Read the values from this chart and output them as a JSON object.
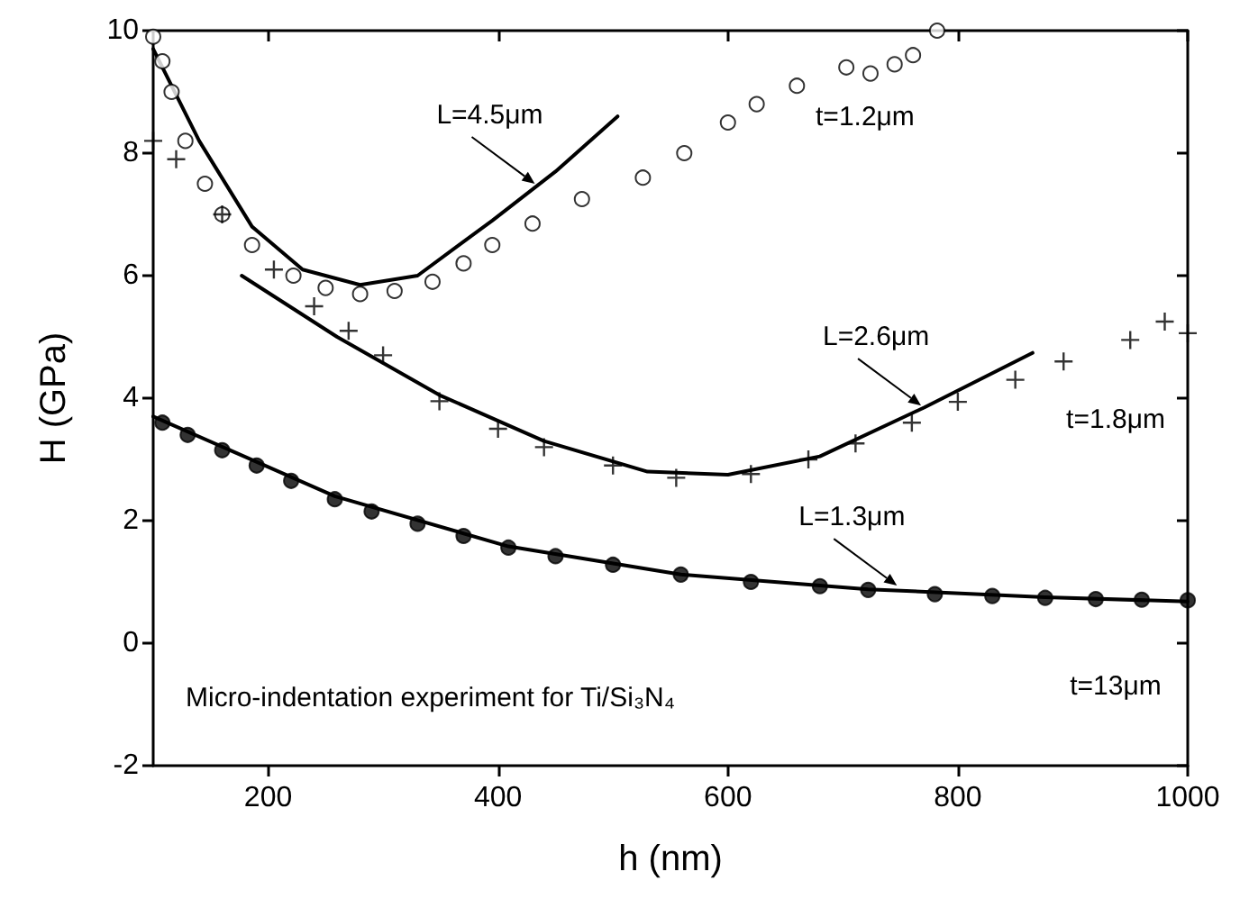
{
  "chart_data": {
    "type": "scatter",
    "xlabel": "h (nm)",
    "ylabel": "H (GPa)",
    "xlim": [
      100,
      1000
    ],
    "ylim": [
      -2,
      10
    ],
    "xticks": [
      200,
      400,
      600,
      800,
      1000
    ],
    "yticks": [
      -2,
      0,
      2,
      4,
      6,
      8,
      10
    ],
    "grid": false,
    "legend": "right",
    "series": [
      {
        "name": "t=1.2μm",
        "marker": "circle",
        "color": "#ffffff",
        "x": [
          100,
          108,
          116,
          128,
          145,
          160,
          186,
          222,
          250,
          280,
          310,
          343,
          370,
          395,
          430,
          473,
          526,
          562,
          600,
          625,
          660,
          703,
          724,
          745,
          761,
          782
        ],
        "values": [
          9.9,
          9.5,
          9.0,
          8.2,
          7.5,
          7.0,
          6.5,
          6.0,
          5.8,
          5.7,
          5.75,
          5.9,
          6.2,
          6.5,
          6.85,
          7.25,
          7.6,
          8.0,
          8.5,
          8.8,
          9.1,
          9.4,
          9.3,
          9.45,
          9.6,
          10.0
        ]
      },
      {
        "name": "t=1.8μm",
        "marker": "cross",
        "color": "#000000",
        "x": [
          100,
          120,
          160,
          205,
          240,
          270,
          300,
          349,
          400,
          440,
          500,
          555,
          620,
          670,
          711,
          760,
          800,
          850,
          892,
          950,
          980,
          1000
        ],
        "values": [
          8.2,
          7.9,
          7.0,
          6.1,
          5.5,
          5.1,
          4.7,
          3.95,
          3.5,
          3.2,
          2.9,
          2.7,
          2.76,
          3.0,
          3.26,
          3.6,
          3.94,
          4.3,
          4.6,
          4.95,
          5.25,
          5.06
        ]
      },
      {
        "name": "t=13μm",
        "marker": "circle",
        "color": "#000000",
        "x": [
          108,
          130,
          160,
          190,
          220,
          258,
          290,
          330,
          370,
          409,
          450,
          500,
          559,
          620,
          680,
          722,
          780,
          830,
          876,
          920,
          960,
          1000
        ],
        "values": [
          3.6,
          3.4,
          3.15,
          2.9,
          2.65,
          2.35,
          2.15,
          1.95,
          1.75,
          1.56,
          1.42,
          1.28,
          1.12,
          1.0,
          0.93,
          0.87,
          0.8,
          0.77,
          0.74,
          0.72,
          0.71,
          0.7
        ]
      },
      {
        "type": "line",
        "marker": "none",
        "color": "#000000",
        "x": [
          100,
          140,
          186,
          230,
          280,
          330,
          395,
          450,
          504
        ],
        "values": [
          9.7,
          8.2,
          6.8,
          6.1,
          5.85,
          6.0,
          6.9,
          7.7,
          8.6
        ]
      },
      {
        "type": "line",
        "marker": "none",
        "color": "#000000",
        "x": [
          177,
          260,
          349,
          440,
          530,
          600,
          680,
          771,
          865
        ],
        "values": [
          6.0,
          5.0,
          4.05,
          3.3,
          2.8,
          2.75,
          3.05,
          3.85,
          4.74
        ]
      },
      {
        "type": "line",
        "marker": "none",
        "color": "#000000",
        "x": [
          100,
          258,
          409,
          559,
          722,
          876,
          1000
        ],
        "values": [
          3.7,
          2.4,
          1.58,
          1.12,
          0.88,
          0.75,
          0.68
        ]
      }
    ],
    "annotations": [
      {
        "text": "L=4.5μm",
        "x": 432,
        "y": 7.5
      },
      {
        "text": "L=2.6μm",
        "x": 768,
        "y": 3.88
      },
      {
        "text": "L=1.3μm",
        "x": 747,
        "y": 0.94
      },
      "Micro-indentation experiment for Ti/Si₃N₄"
    ]
  }
}
